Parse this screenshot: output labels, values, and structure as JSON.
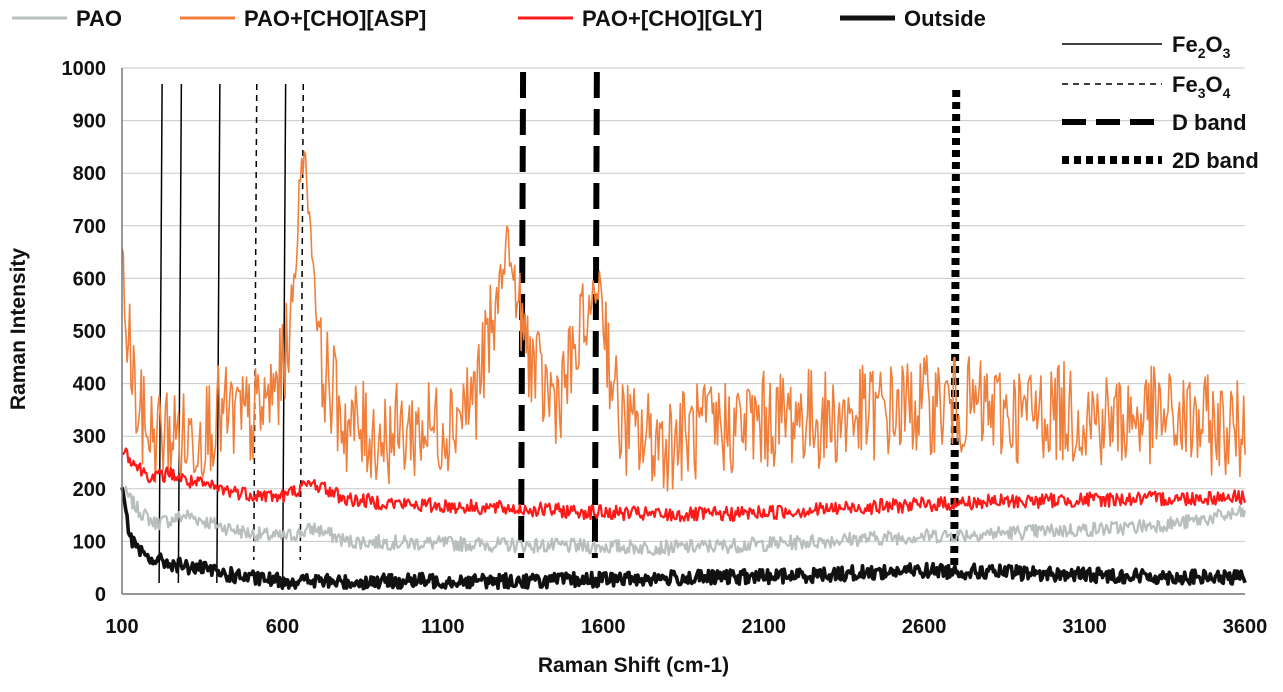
{
  "chart_data": {
    "type": "line",
    "xlabel": "Raman Shift (cm-1)",
    "ylabel": "Raman Intensity",
    "xlim": [
      100,
      3600
    ],
    "ylim": [
      0,
      1000
    ],
    "x_ticks": [
      100,
      600,
      1100,
      1600,
      2100,
      2600,
      3100,
      3600
    ],
    "x_tick_labels": [
      "100",
      "600",
      "1100",
      "1600",
      "2100",
      "2600",
      "3100",
      "3600"
    ],
    "y_ticks": [
      0,
      100,
      200,
      300,
      400,
      500,
      600,
      700,
      800,
      900,
      1000
    ],
    "y_tick_labels": [
      "0",
      "100",
      "200",
      "300",
      "400",
      "500",
      "600",
      "700",
      "800",
      "900",
      "1000"
    ],
    "grid": true,
    "series": [
      {
        "name": "PAO",
        "color": "#b8bfbd",
        "x": [
          100,
          150,
          200,
          250,
          300,
          400,
          500,
          600,
          650,
          700,
          800,
          1000,
          1200,
          1400,
          1600,
          1800,
          2000,
          2200,
          2400,
          2600,
          2800,
          3000,
          3200,
          3400,
          3600
        ],
        "y": [
          200,
          160,
          135,
          140,
          150,
          130,
          115,
          108,
          115,
          125,
          100,
          97,
          95,
          92,
          90,
          88,
          92,
          98,
          105,
          110,
          115,
          120,
          125,
          135,
          155
        ]
      },
      {
        "name": "PAO+[CHO][ASP]",
        "color": "#f07f3c",
        "x": [
          100,
          110,
          125,
          150,
          200,
          250,
          300,
          400,
          500,
          550,
          600,
          640,
          660,
          680,
          720,
          800,
          900,
          1000,
          1100,
          1200,
          1260,
          1300,
          1340,
          1400,
          1450,
          1500,
          1550,
          1590,
          1620,
          1650,
          1700,
          1800,
          1900,
          2000,
          2100,
          2200,
          2300,
          2400,
          2500,
          2600,
          2700,
          2800,
          2900,
          3000,
          3100,
          3200,
          3300,
          3400,
          3500,
          3600
        ],
        "y": [
          620,
          520,
          460,
          340,
          300,
          310,
          290,
          340,
          330,
          360,
          420,
          600,
          860,
          760,
          440,
          320,
          300,
          310,
          320,
          380,
          520,
          680,
          520,
          400,
          370,
          430,
          520,
          600,
          440,
          330,
          300,
          290,
          310,
          320,
          330,
          340,
          330,
          340,
          350,
          360,
          360,
          350,
          340,
          350,
          340,
          330,
          340,
          330,
          320,
          310
        ]
      },
      {
        "name": "PAO+[CHO][GLY]",
        "color": "#ff1a1a",
        "x": [
          100,
          150,
          200,
          250,
          300,
          400,
          500,
          600,
          650,
          700,
          800,
          1000,
          1200,
          1400,
          1600,
          1800,
          2000,
          2200,
          2400,
          2600,
          2800,
          3000,
          3200,
          3400,
          3600
        ],
        "y": [
          280,
          240,
          220,
          230,
          215,
          200,
          190,
          185,
          200,
          210,
          180,
          170,
          165,
          160,
          155,
          150,
          152,
          158,
          165,
          170,
          175,
          178,
          180,
          182,
          185
        ]
      },
      {
        "name": "Outside",
        "color": "#111111",
        "x": [
          100,
          110,
          125,
          150,
          200,
          250,
          300,
          350,
          400,
          500,
          600,
          700,
          800,
          1000,
          1200,
          1400,
          1600,
          1800,
          2000,
          2200,
          2400,
          2600,
          2800,
          3000,
          3200,
          3400,
          3600
        ],
        "y": [
          210,
          160,
          110,
          80,
          65,
          58,
          52,
          48,
          40,
          30,
          25,
          25,
          22,
          25,
          25,
          25,
          28,
          30,
          32,
          35,
          40,
          45,
          42,
          38,
          35,
          32,
          30
        ]
      }
    ],
    "reference_lines": [
      {
        "name": "Fe2O3",
        "style": "solid",
        "x": [
          225,
          285,
          405,
          610
        ]
      },
      {
        "name": "Fe3O4",
        "style": "short-dash",
        "x": [
          520,
          665
        ]
      },
      {
        "name": "D band",
        "style": "long-dash",
        "x": [
          1350,
          1580
        ]
      },
      {
        "name": "2D band",
        "style": "dotted",
        "x": [
          2700
        ]
      }
    ],
    "top_legend": [
      {
        "label": "PAO",
        "color": "#b8bfbd"
      },
      {
        "label": "PAO+[CHO][ASP]",
        "color": "#f07f3c"
      },
      {
        "label": "PAO+[CHO][GLY]",
        "color": "#ff1a1a"
      },
      {
        "label": "Outside",
        "color": "#111111"
      }
    ],
    "right_legend": [
      {
        "label": "Fe",
        "sub1": "2",
        "mid": "O",
        "sub2": "3",
        "style": "solid"
      },
      {
        "label": "Fe",
        "sub1": "3",
        "mid": "O",
        "sub2": "4",
        "style": "short-dash"
      },
      {
        "label": "D band",
        "style": "long-dash"
      },
      {
        "label": "2D band",
        "style": "dotted"
      }
    ]
  }
}
